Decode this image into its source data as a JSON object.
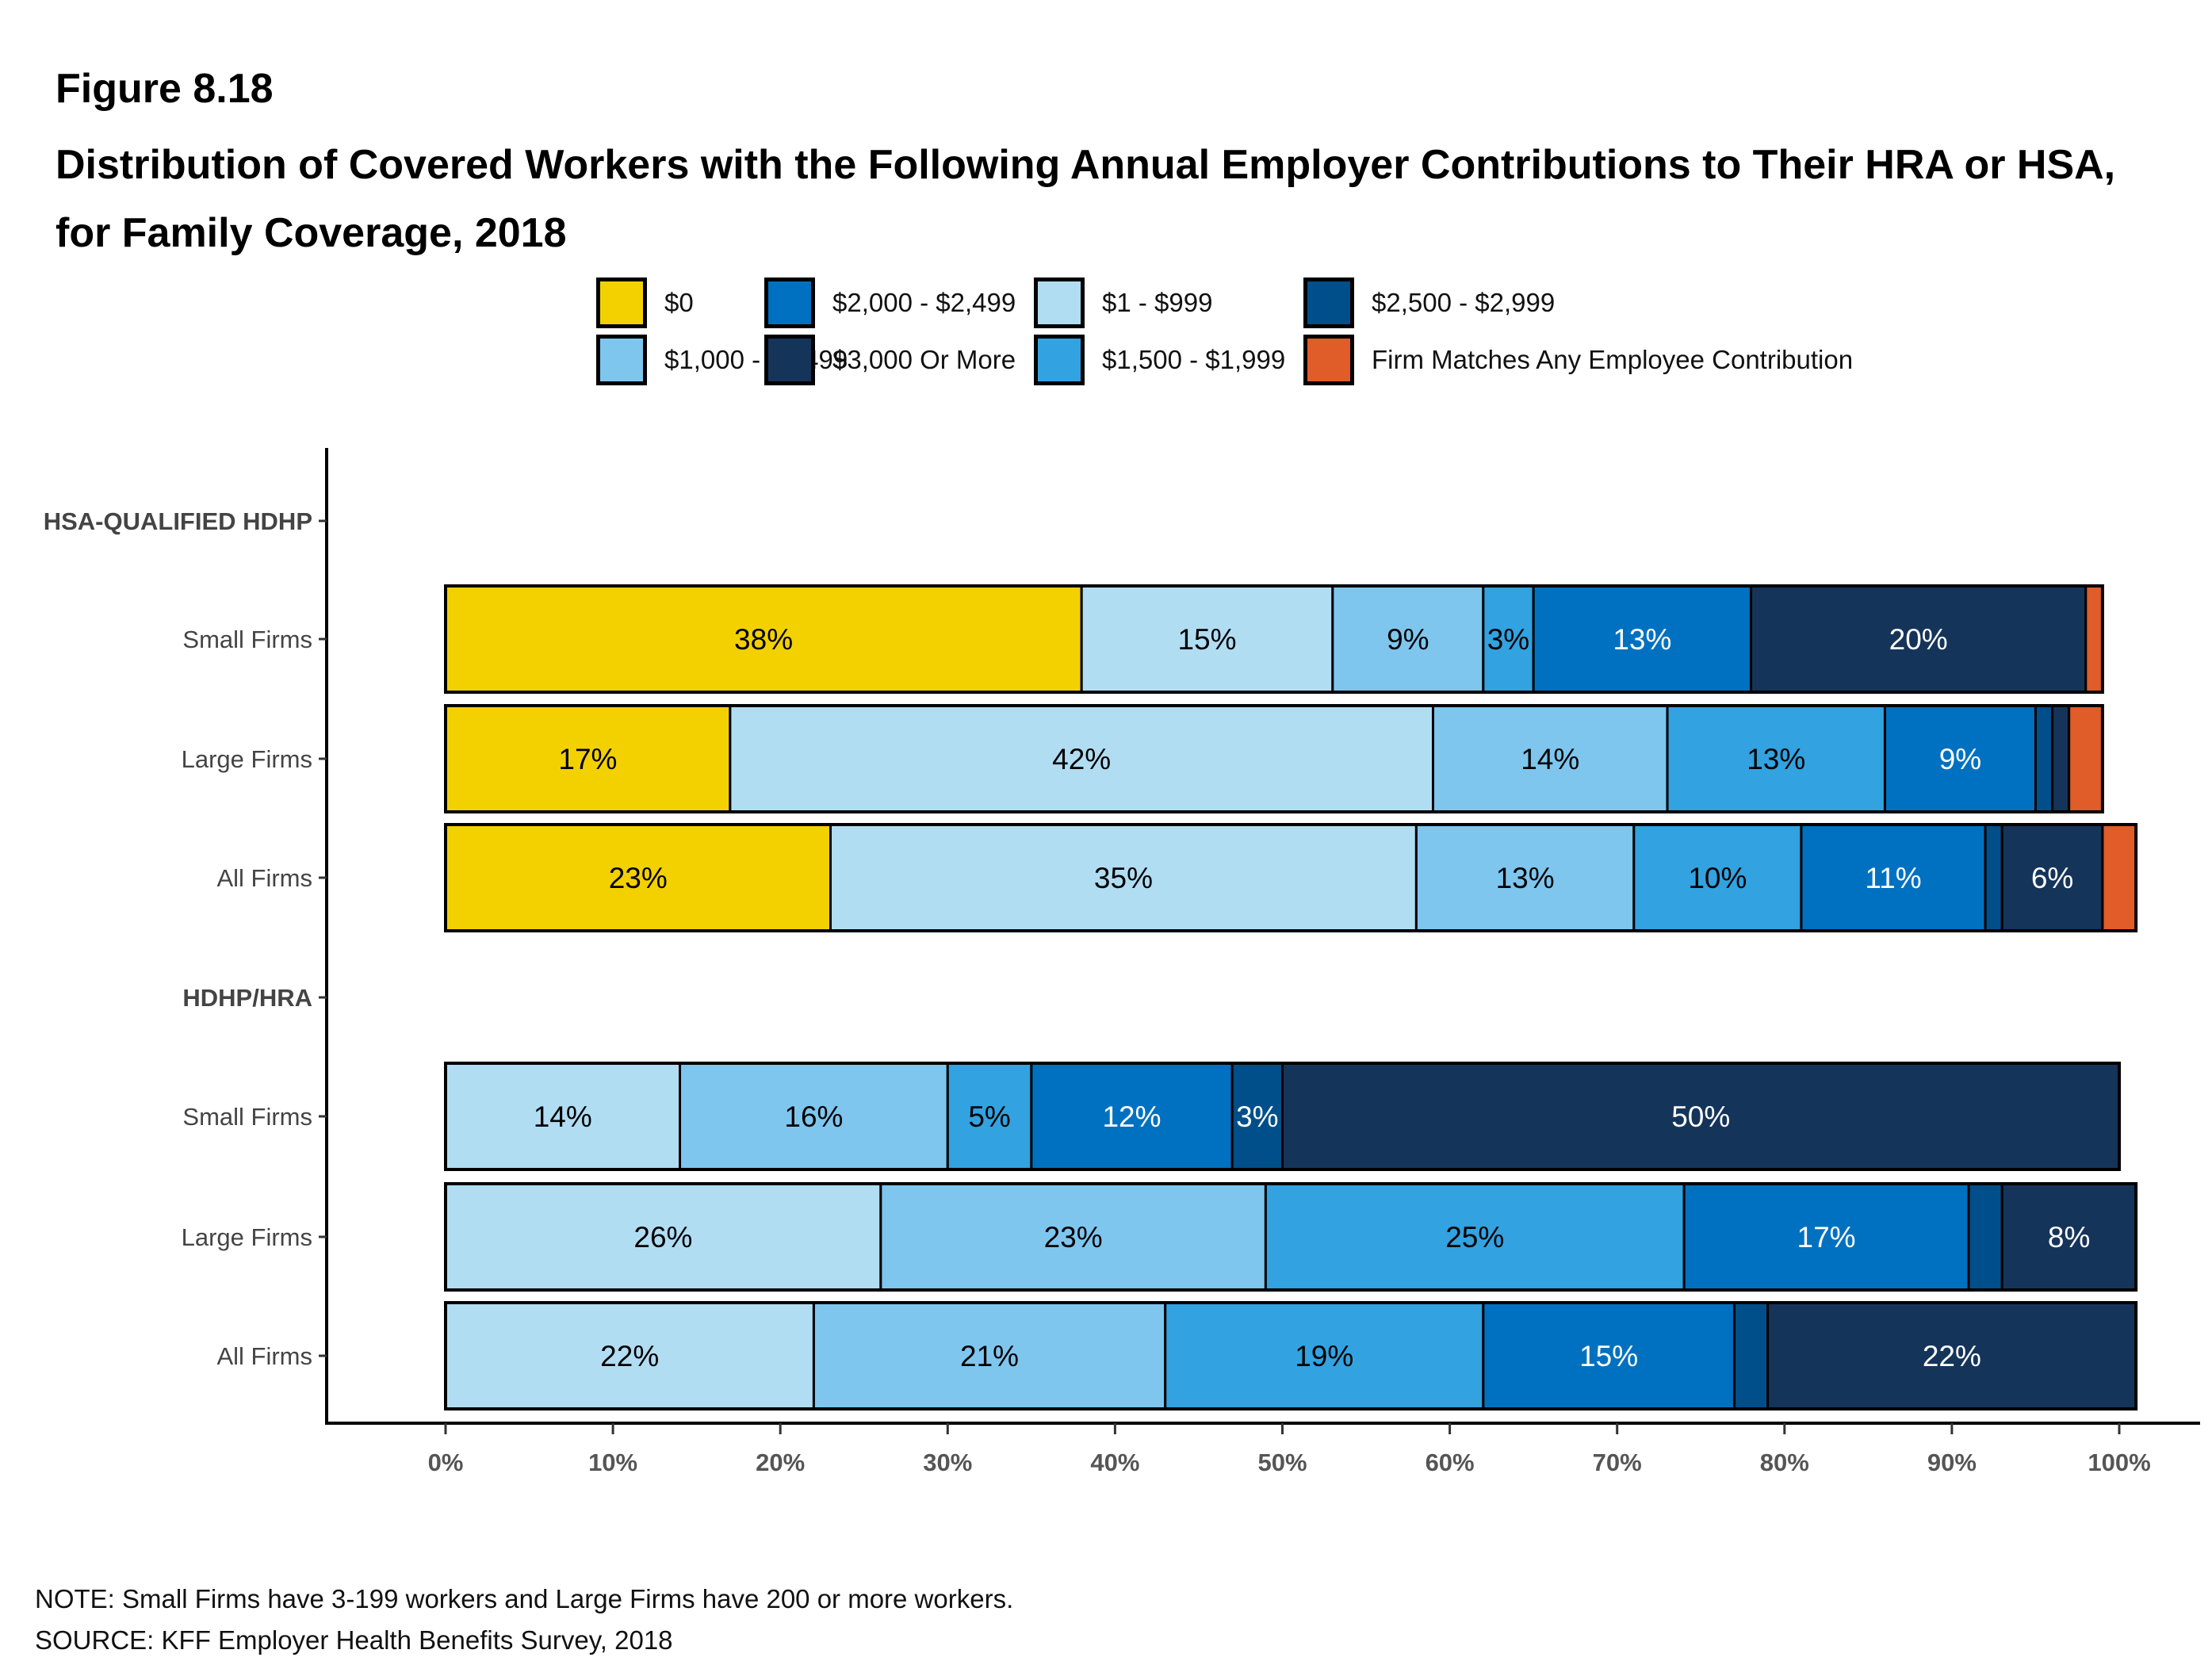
{
  "figure_label": "Figure 8.18",
  "title": "Distribution of Covered Workers with the Following Annual Employer Contributions to Their HRA or HSA, for Family Coverage, 2018",
  "note": "NOTE: Small Firms have 3-199 workers and Large Firms have 200 or more workers.",
  "source": "SOURCE: KFF Employer Health Benefits Survey, 2018",
  "chart_data": {
    "type": "bar",
    "orientation": "horizontal",
    "stacked": true,
    "title": "Distribution of Covered Workers with the Following Annual Employer Contributions to Their HRA or HSA, for Family Coverage, 2018",
    "xlabel": "",
    "ylabel": "",
    "xlim": [
      0,
      100
    ],
    "x_ticks": [
      "0%",
      "10%",
      "20%",
      "30%",
      "40%",
      "50%",
      "60%",
      "70%",
      "80%",
      "90%",
      "100%"
    ],
    "grid": false,
    "legend_position": "top",
    "series_names": [
      "$0",
      "$1 - $999",
      "$1,000 - $1,499",
      "$1,500 - $1,999",
      "$2,000 - $2,499",
      "$2,500 - $2,999",
      "$3,000 Or More",
      "Firm Matches Any Employee Contribution"
    ],
    "series_colors": [
      "#F3D100",
      "#B1DDF3",
      "#7EC6EE",
      "#32A2E0",
      "#0071C0",
      "#004F8A",
      "#15345A",
      "#E05C28"
    ],
    "label_colors": [
      "#000000",
      "#000000",
      "#000000",
      "#000000",
      "#ffffff",
      "#ffffff",
      "#ffffff",
      "#ffffff"
    ],
    "legend_order": [
      0,
      2,
      4,
      6,
      1,
      3,
      5,
      7
    ],
    "groups": [
      {
        "name": "HSA-QUALIFIED HDHP",
        "rows": [
          {
            "name": "Small Firms",
            "values": [
              38,
              15,
              9,
              3,
              13,
              0,
              20,
              1
            ],
            "labels": [
              "38%",
              "15%",
              "9%",
              "3%",
              "13%",
              "",
              "20%",
              ""
            ]
          },
          {
            "name": "Large Firms",
            "values": [
              17,
              42,
              14,
              13,
              9,
              1,
              1,
              2
            ],
            "labels": [
              "17%",
              "42%",
              "14%",
              "13%",
              "9%",
              "",
              "",
              ""
            ]
          },
          {
            "name": "All Firms",
            "values": [
              23,
              35,
              13,
              10,
              11,
              1,
              6,
              2
            ],
            "labels": [
              "23%",
              "35%",
              "13%",
              "10%",
              "11%",
              "",
              "6%",
              ""
            ]
          }
        ]
      },
      {
        "name": "HDHP/HRA",
        "rows": [
          {
            "name": "Small Firms",
            "values": [
              0,
              14,
              16,
              5,
              12,
              3,
              50,
              0
            ],
            "labels": [
              "",
              "14%",
              "16%",
              "5%",
              "12%",
              "3%",
              "50%",
              ""
            ]
          },
          {
            "name": "Large Firms",
            "values": [
              0,
              26,
              23,
              25,
              17,
              2,
              8,
              0
            ],
            "labels": [
              "",
              "26%",
              "23%",
              "25%",
              "17%",
              "",
              "8%",
              ""
            ]
          },
          {
            "name": "All Firms",
            "values": [
              0,
              22,
              21,
              19,
              15,
              2,
              22,
              0
            ],
            "labels": [
              "",
              "22%",
              "21%",
              "19%",
              "15%",
              "",
              "22%",
              ""
            ]
          }
        ]
      }
    ]
  }
}
